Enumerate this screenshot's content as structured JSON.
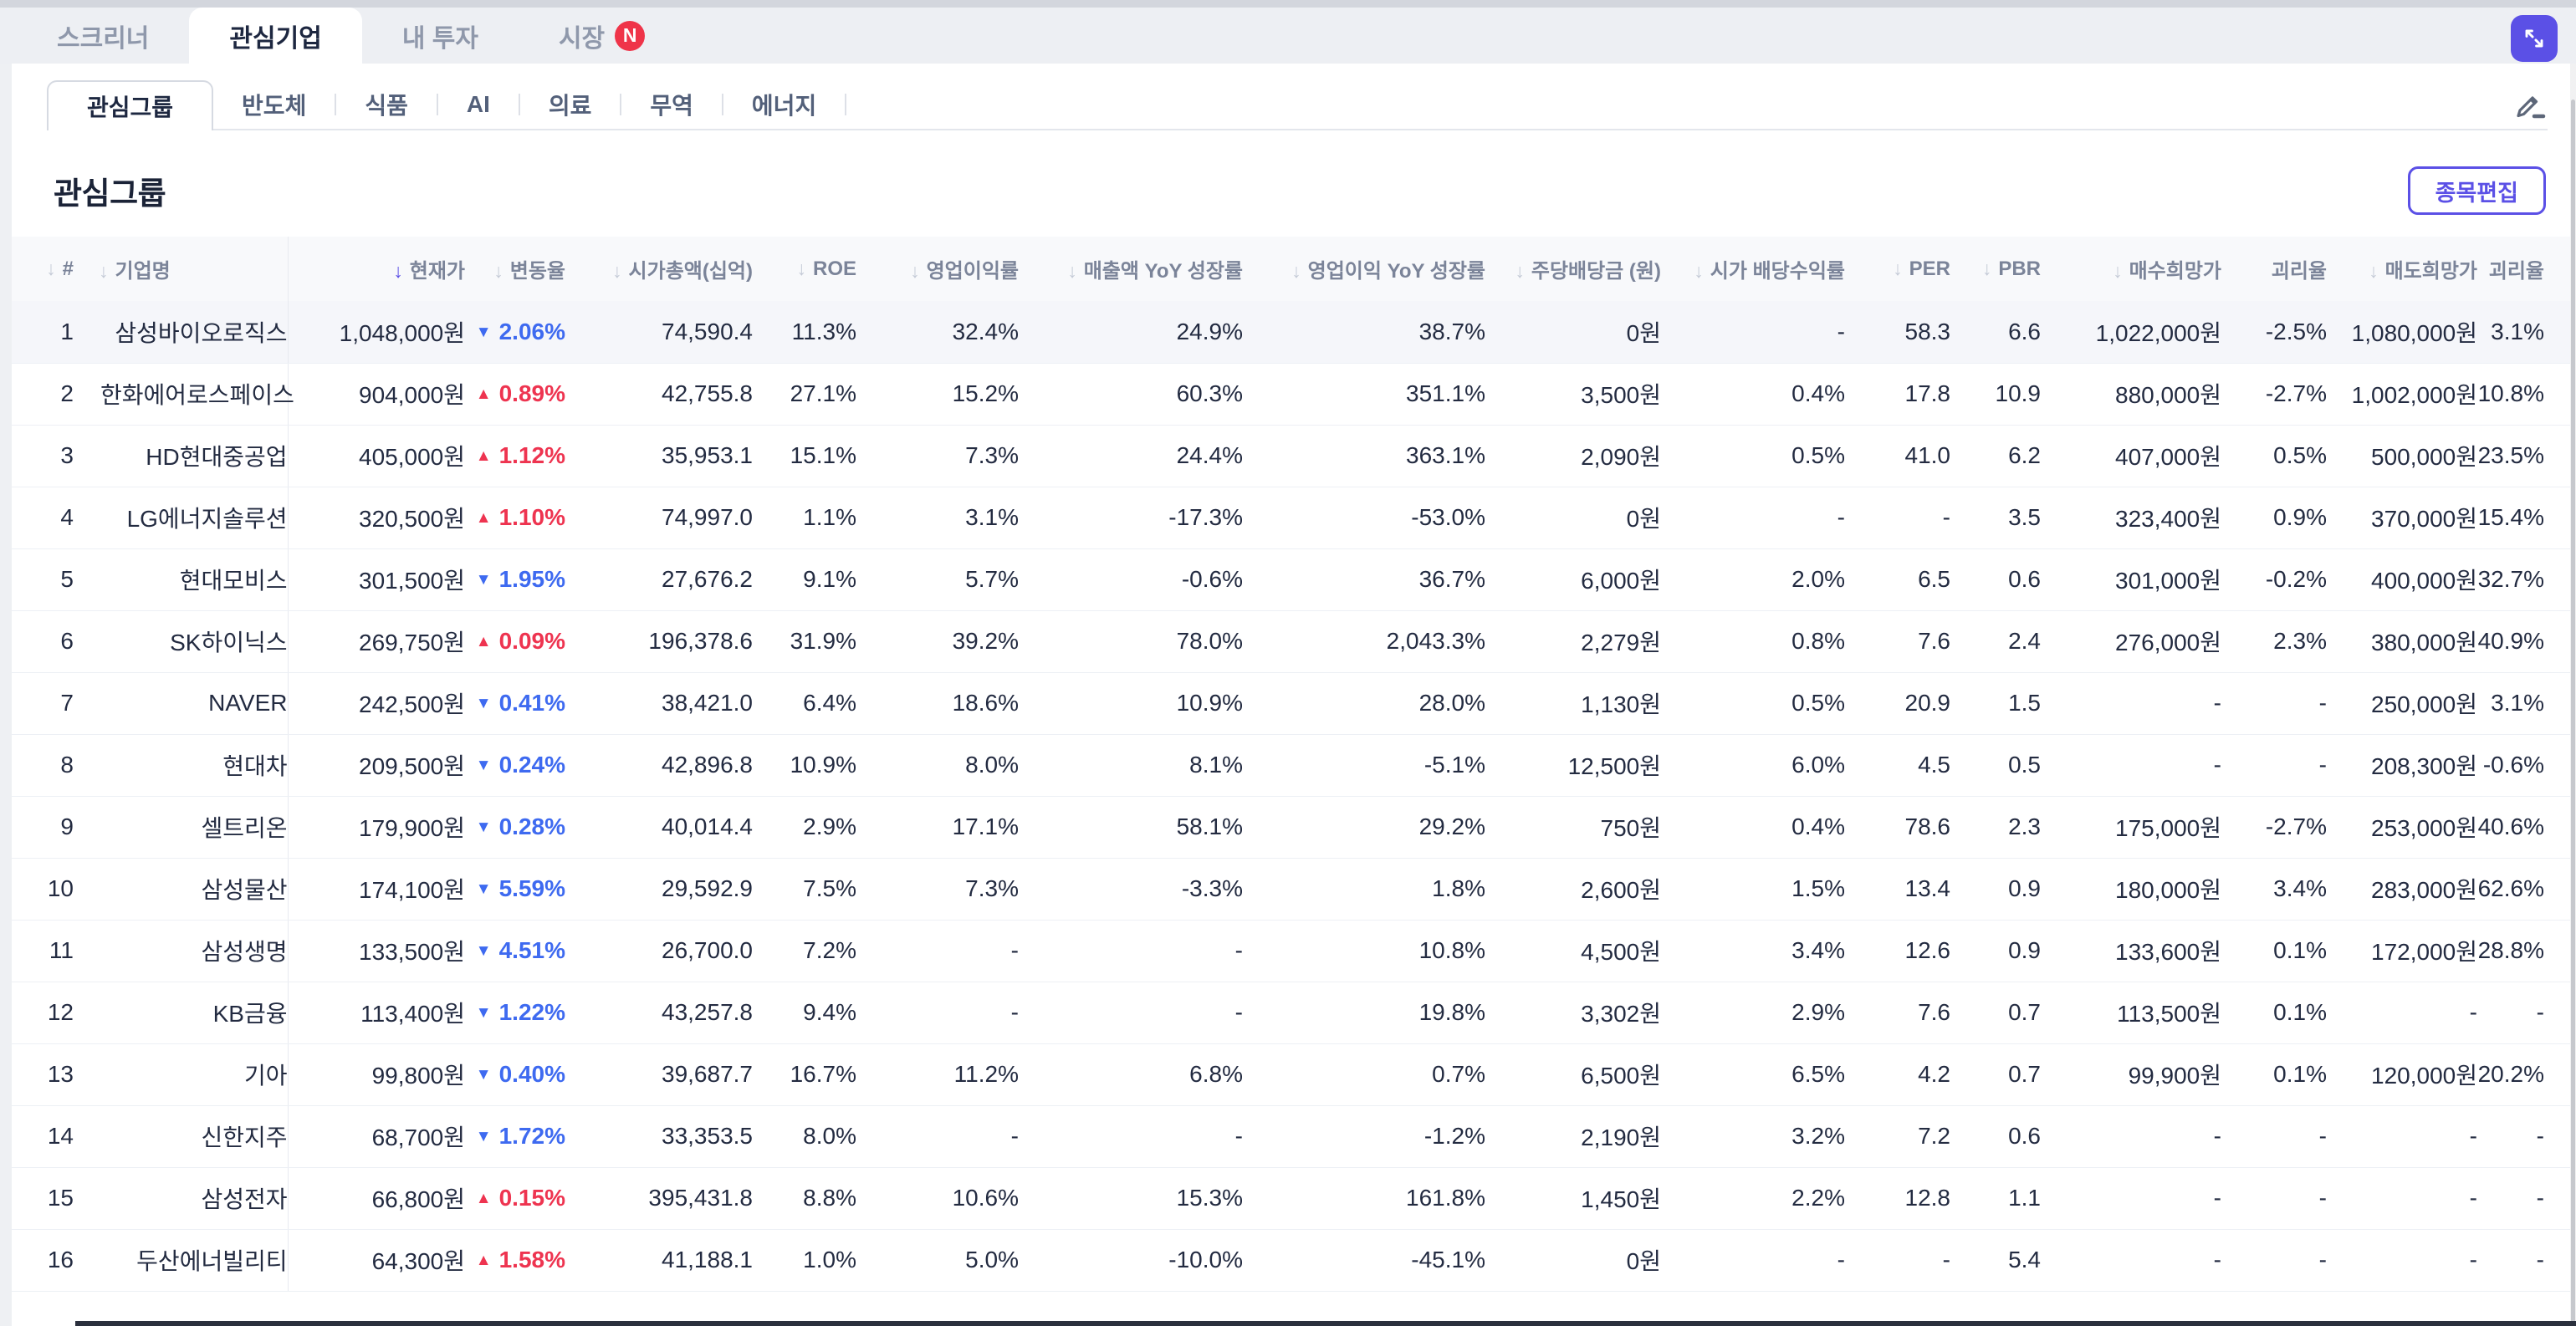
{
  "topbar": {
    "tabs": [
      {
        "label": "스크리너",
        "active": false
      },
      {
        "label": "관심기업",
        "active": true
      },
      {
        "label": "내 투자",
        "active": false
      },
      {
        "label": "시장",
        "active": false,
        "badge": "N"
      }
    ],
    "expand_icon": "expand-arrows-icon"
  },
  "group_tabs": {
    "items": [
      "관심그룹",
      "반도체",
      "식품",
      "AI",
      "의료",
      "무역",
      "에너지"
    ],
    "active": "관심그룹",
    "edit_icon": "pencil-icon"
  },
  "page": {
    "title": "관심그룹",
    "edit_button": "종목편집"
  },
  "colors": {
    "accent": "#5b50e6",
    "rise_red": "#ee3450",
    "fall_blue": "#3e6af0",
    "target_price_link": "#6254e8",
    "badge_red": "#ef3449"
  },
  "table": {
    "sorted_by": "현재가",
    "columns": [
      {
        "label": "#",
        "arrow": true
      },
      {
        "label": "기업명",
        "arrow": true
      },
      {
        "label": "현재가",
        "arrow": true,
        "active": true
      },
      {
        "label": "변동율",
        "arrow": true
      },
      {
        "label": "시가총액(십억)",
        "arrow": true
      },
      {
        "label": "ROE",
        "arrow": true
      },
      {
        "label": "영업이익률",
        "arrow": true
      },
      {
        "label": "매출액 YoY 성장률",
        "arrow": true
      },
      {
        "label": "영업이익 YoY 성장률",
        "arrow": true
      },
      {
        "label": "주당배당금 (원)",
        "arrow": true
      },
      {
        "label": "시가 배당수익률",
        "arrow": true
      },
      {
        "label": "PER",
        "arrow": true
      },
      {
        "label": "PBR",
        "arrow": true
      },
      {
        "label": "매수희망가",
        "arrow": true
      },
      {
        "label": "괴리율",
        "arrow": false
      },
      {
        "label": "매도희망가",
        "arrow": true
      },
      {
        "label": "괴리율",
        "arrow": false
      }
    ],
    "rows": [
      {
        "num": "1",
        "name": "삼성바이오로직스",
        "price": "1,048,000원",
        "dir": "down",
        "change": "2.06%",
        "mcap": "74,590.4",
        "roe": "11.3%",
        "op_margin": "32.4%",
        "rev_yoy": "24.9%",
        "op_yoy": "38.7%",
        "dps": "0원",
        "yield": "-",
        "per": "58.3",
        "pbr": "6.6",
        "buy": "1,022,000원",
        "buy_gap": "-2.5%",
        "sell": "1,080,000원",
        "sell_gap": "3.1%",
        "highlight": true
      },
      {
        "num": "2",
        "name": "한화에어로스페이스",
        "price": "904,000원",
        "dir": "up",
        "change": "0.89%",
        "mcap": "42,755.8",
        "roe": "27.1%",
        "op_margin": "15.2%",
        "rev_yoy": "60.3%",
        "op_yoy": "351.1%",
        "dps": "3,500원",
        "yield": "0.4%",
        "per": "17.8",
        "pbr": "10.9",
        "buy": "880,000원",
        "buy_gap": "-2.7%",
        "sell": "1,002,000원",
        "sell_gap": "10.8%"
      },
      {
        "num": "3",
        "name": "HD현대중공업",
        "price": "405,000원",
        "dir": "up",
        "change": "1.12%",
        "mcap": "35,953.1",
        "roe": "15.1%",
        "op_margin": "7.3%",
        "rev_yoy": "24.4%",
        "op_yoy": "363.1%",
        "dps": "2,090원",
        "yield": "0.5%",
        "per": "41.0",
        "pbr": "6.2",
        "buy": "407,000원",
        "buy_gap": "0.5%",
        "sell": "500,000원",
        "sell_gap": "23.5%"
      },
      {
        "num": "4",
        "name": "LG에너지솔루션",
        "price": "320,500원",
        "dir": "up",
        "change": "1.10%",
        "mcap": "74,997.0",
        "roe": "1.1%",
        "op_margin": "3.1%",
        "rev_yoy": "-17.3%",
        "op_yoy": "-53.0%",
        "dps": "0원",
        "yield": "-",
        "per": "-",
        "pbr": "3.5",
        "buy": "323,400원",
        "buy_gap": "0.9%",
        "sell": "370,000원",
        "sell_gap": "15.4%"
      },
      {
        "num": "5",
        "name": "현대모비스",
        "price": "301,500원",
        "dir": "down",
        "change": "1.95%",
        "mcap": "27,676.2",
        "roe": "9.1%",
        "op_margin": "5.7%",
        "rev_yoy": "-0.6%",
        "op_yoy": "36.7%",
        "dps": "6,000원",
        "yield": "2.0%",
        "per": "6.5",
        "pbr": "0.6",
        "buy": "301,000원",
        "buy_gap": "-0.2%",
        "sell": "400,000원",
        "sell_gap": "32.7%"
      },
      {
        "num": "6",
        "name": "SK하이닉스",
        "price": "269,750원",
        "dir": "up",
        "change": "0.09%",
        "mcap": "196,378.6",
        "roe": "31.9%",
        "op_margin": "39.2%",
        "rev_yoy": "78.0%",
        "op_yoy": "2,043.3%",
        "dps": "2,279원",
        "yield": "0.8%",
        "per": "7.6",
        "pbr": "2.4",
        "buy": "276,000원",
        "buy_gap": "2.3%",
        "sell": "380,000원",
        "sell_gap": "40.9%"
      },
      {
        "num": "7",
        "name": "NAVER",
        "price": "242,500원",
        "dir": "down",
        "change": "0.41%",
        "mcap": "38,421.0",
        "roe": "6.4%",
        "op_margin": "18.6%",
        "rev_yoy": "10.9%",
        "op_yoy": "28.0%",
        "dps": "1,130원",
        "yield": "0.5%",
        "per": "20.9",
        "pbr": "1.5",
        "buy": "-",
        "buy_gap": "-",
        "sell": "250,000원",
        "sell_gap": "3.1%"
      },
      {
        "num": "8",
        "name": "현대차",
        "price": "209,500원",
        "dir": "down",
        "change": "0.24%",
        "mcap": "42,896.8",
        "roe": "10.9%",
        "op_margin": "8.0%",
        "rev_yoy": "8.1%",
        "op_yoy": "-5.1%",
        "dps": "12,500원",
        "yield": "6.0%",
        "per": "4.5",
        "pbr": "0.5",
        "buy": "-",
        "buy_gap": "-",
        "sell": "208,300원",
        "sell_gap": "-0.6%"
      },
      {
        "num": "9",
        "name": "셀트리온",
        "price": "179,900원",
        "dir": "down",
        "change": "0.28%",
        "mcap": "40,014.4",
        "roe": "2.9%",
        "op_margin": "17.1%",
        "rev_yoy": "58.1%",
        "op_yoy": "29.2%",
        "dps": "750원",
        "yield": "0.4%",
        "per": "78.6",
        "pbr": "2.3",
        "buy": "175,000원",
        "buy_gap": "-2.7%",
        "sell": "253,000원",
        "sell_gap": "40.6%"
      },
      {
        "num": "10",
        "name": "삼성물산",
        "price": "174,100원",
        "dir": "down",
        "change": "5.59%",
        "mcap": "29,592.9",
        "roe": "7.5%",
        "op_margin": "7.3%",
        "rev_yoy": "-3.3%",
        "op_yoy": "1.8%",
        "dps": "2,600원",
        "yield": "1.5%",
        "per": "13.4",
        "pbr": "0.9",
        "buy": "180,000원",
        "buy_gap": "3.4%",
        "sell": "283,000원",
        "sell_gap": "62.6%"
      },
      {
        "num": "11",
        "name": "삼성생명",
        "price": "133,500원",
        "dir": "down",
        "change": "4.51%",
        "mcap": "26,700.0",
        "roe": "7.2%",
        "op_margin": "-",
        "rev_yoy": "-",
        "op_yoy": "10.8%",
        "dps": "4,500원",
        "yield": "3.4%",
        "per": "12.6",
        "pbr": "0.9",
        "buy": "133,600원",
        "buy_gap": "0.1%",
        "sell": "172,000원",
        "sell_gap": "28.8%"
      },
      {
        "num": "12",
        "name": "KB금융",
        "price": "113,400원",
        "dir": "down",
        "change": "1.22%",
        "mcap": "43,257.8",
        "roe": "9.4%",
        "op_margin": "-",
        "rev_yoy": "-",
        "op_yoy": "19.8%",
        "dps": "3,302원",
        "yield": "2.9%",
        "per": "7.6",
        "pbr": "0.7",
        "buy": "113,500원",
        "buy_gap": "0.1%",
        "sell": "-",
        "sell_gap": "-"
      },
      {
        "num": "13",
        "name": "기아",
        "price": "99,800원",
        "dir": "down",
        "change": "0.40%",
        "mcap": "39,687.7",
        "roe": "16.7%",
        "op_margin": "11.2%",
        "rev_yoy": "6.8%",
        "op_yoy": "0.7%",
        "dps": "6,500원",
        "yield": "6.5%",
        "per": "4.2",
        "pbr": "0.7",
        "buy": "99,900원",
        "buy_gap": "0.1%",
        "sell": "120,000원",
        "sell_gap": "20.2%"
      },
      {
        "num": "14",
        "name": "신한지주",
        "price": "68,700원",
        "dir": "down",
        "change": "1.72%",
        "mcap": "33,353.5",
        "roe": "8.0%",
        "op_margin": "-",
        "rev_yoy": "-",
        "op_yoy": "-1.2%",
        "dps": "2,190원",
        "yield": "3.2%",
        "per": "7.2",
        "pbr": "0.6",
        "buy": "-",
        "buy_gap": "-",
        "sell": "-",
        "sell_gap": "-"
      },
      {
        "num": "15",
        "name": "삼성전자",
        "price": "66,800원",
        "dir": "up",
        "change": "0.15%",
        "mcap": "395,431.8",
        "roe": "8.8%",
        "op_margin": "10.6%",
        "rev_yoy": "15.3%",
        "op_yoy": "161.8%",
        "dps": "1,450원",
        "yield": "2.2%",
        "per": "12.8",
        "pbr": "1.1",
        "buy": "-",
        "buy_gap": "-",
        "sell": "-",
        "sell_gap": "-"
      },
      {
        "num": "16",
        "name": "두산에너빌리티",
        "price": "64,300원",
        "dir": "up",
        "change": "1.58%",
        "mcap": "41,188.1",
        "roe": "1.0%",
        "op_margin": "5.0%",
        "rev_yoy": "-10.0%",
        "op_yoy": "-45.1%",
        "dps": "0원",
        "yield": "-",
        "per": "-",
        "pbr": "5.4",
        "buy": "-",
        "buy_gap": "-",
        "sell": "-",
        "sell_gap": "-"
      }
    ]
  }
}
